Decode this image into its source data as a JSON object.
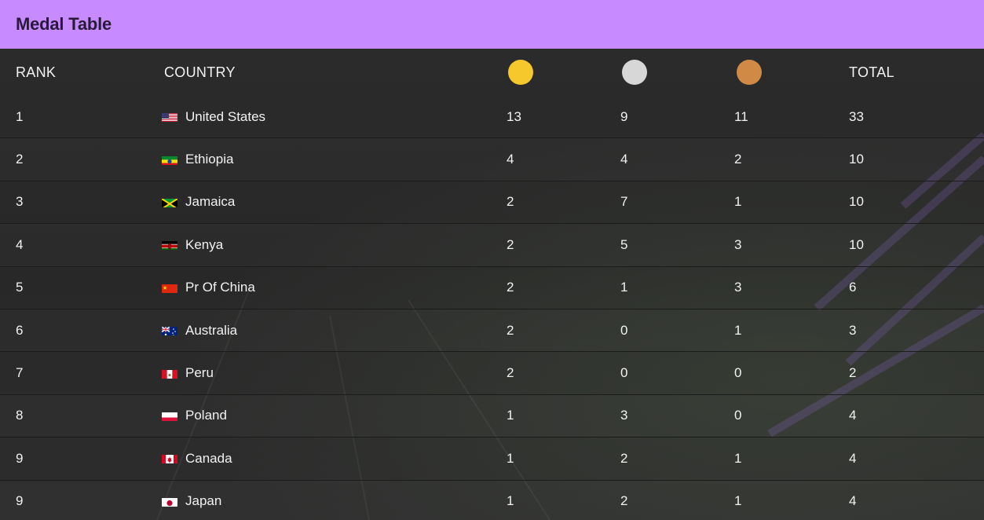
{
  "header": {
    "title": "Medal Table"
  },
  "columns": {
    "rank": "RANK",
    "country": "COUNTRY",
    "total": "TOTAL"
  },
  "medal_colors": {
    "gold": "#f7c82b",
    "silver": "#d7d7d7",
    "bronze": "#d08a45"
  },
  "rows": [
    {
      "rank": "1",
      "country": "United States",
      "flag": "us-flag",
      "gold": "13",
      "silver": "9",
      "bronze": "11",
      "total": "33"
    },
    {
      "rank": "2",
      "country": "Ethiopia",
      "flag": "ethiopia-flag",
      "gold": "4",
      "silver": "4",
      "bronze": "2",
      "total": "10"
    },
    {
      "rank": "3",
      "country": "Jamaica",
      "flag": "jamaica-flag",
      "gold": "2",
      "silver": "7",
      "bronze": "1",
      "total": "10"
    },
    {
      "rank": "4",
      "country": "Kenya",
      "flag": "kenya-flag",
      "gold": "2",
      "silver": "5",
      "bronze": "3",
      "total": "10"
    },
    {
      "rank": "5",
      "country": "Pr Of China",
      "flag": "china-flag",
      "gold": "2",
      "silver": "1",
      "bronze": "3",
      "total": "6"
    },
    {
      "rank": "6",
      "country": "Australia",
      "flag": "australia-flag",
      "gold": "2",
      "silver": "0",
      "bronze": "1",
      "total": "3"
    },
    {
      "rank": "7",
      "country": "Peru",
      "flag": "peru-flag",
      "gold": "2",
      "silver": "0",
      "bronze": "0",
      "total": "2"
    },
    {
      "rank": "8",
      "country": "Poland",
      "flag": "poland-flag",
      "gold": "1",
      "silver": "3",
      "bronze": "0",
      "total": "4"
    },
    {
      "rank": "9",
      "country": "Canada",
      "flag": "canada-flag",
      "gold": "1",
      "silver": "2",
      "bronze": "1",
      "total": "4"
    },
    {
      "rank": "9",
      "country": "Japan",
      "flag": "japan-flag",
      "gold": "1",
      "silver": "2",
      "bronze": "1",
      "total": "4"
    }
  ]
}
